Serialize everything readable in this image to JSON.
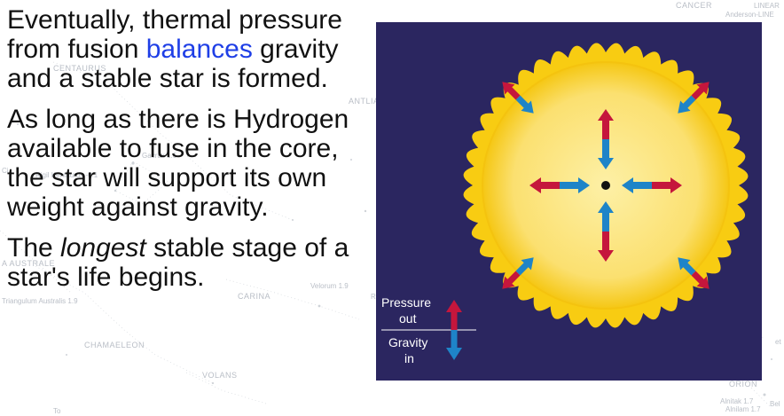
{
  "slide": {
    "paragraphs": [
      {
        "before": "Eventually, thermal pressure from fusion ",
        "highlight": "balances",
        "after": " gravity and a stable star is formed."
      },
      {
        "text": "As long as there is Hydrogen available to fuse in the core, the star will support its own weight against gravity."
      },
      {
        "before": "The ",
        "emph": "longest",
        "after": " stable stage of a star's life begins."
      }
    ],
    "highlight_color": "#1f3fe6"
  },
  "background_map": {
    "constellations": [
      "CANCER",
      "CENTAURUS",
      "ANTLIA",
      "CHAMAELEON",
      "CARINA",
      "VOLANS",
      "ORION"
    ],
    "fragments": [
      "A AUSTRALE",
      "LINEAR",
      "Anderson-LINE",
      "Triangulum Australis 1.9",
      "Gacrux 1.6",
      "Rigil Kentaurus -0.1",
      "Velorum 1.9",
      "Alnitak 1.7",
      "Alnilam 1.7",
      "Bel",
      "Ci",
      "R",
      "et",
      "To"
    ]
  },
  "diagram": {
    "legend": {
      "pressure": "Pressure",
      "out": "out",
      "gravity": "Gravity",
      "in": "in"
    },
    "colors": {
      "background": "#2b2660",
      "sun_outer": "#f9d31a",
      "sun_inner": "#fbe88a",
      "pressure_arrow": "#c5163c",
      "gravity_arrow": "#1e84c8"
    }
  }
}
